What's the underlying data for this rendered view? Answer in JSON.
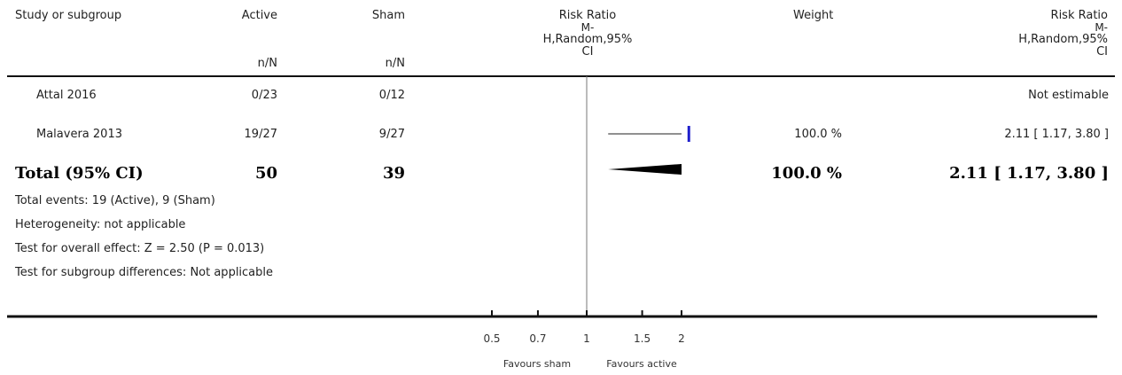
{
  "header": {
    "study": "Study or subgroup",
    "active": "Active",
    "sham": "Sham",
    "rr_lines": [
      "Risk Ratio",
      "M-",
      "H,Random,95%",
      "CI"
    ],
    "weight": "Weight",
    "rr2_lines": [
      "Risk Ratio",
      "M-",
      "H,Random,95%",
      "CI"
    ],
    "active_sub": "n/N",
    "sham_sub": "n/N"
  },
  "studies": [
    {
      "name": "Attal 2016",
      "active": "0/23",
      "sham": "0/12",
      "weight": "",
      "rr_text": "Not estimable"
    },
    {
      "name": "Malavera 2013",
      "active": "19/27",
      "sham": "9/27",
      "weight": "100.0 %",
      "rr_text": "2.11 [ 1.17, 3.80 ]"
    }
  ],
  "total": {
    "label": "Total (95% CI)",
    "active": "50",
    "sham": "39",
    "weight": "100.0 %",
    "rr_text": "2.11 [ 1.17, 3.80 ]"
  },
  "footnotes": [
    "Total events: 19 (Active), 9 (Sham)",
    "Heterogeneity: not applicable",
    "Test for overall effect: Z = 2.50 (P = 0.013)",
    "Test for subgroup differences: Not applicable"
  ],
  "axis": {
    "favours_left": "Favours sham",
    "favours_right": "Favours active"
  },
  "chart_data": {
    "type": "forest",
    "scale": "log",
    "x_range": [
      0.5,
      2
    ],
    "null_value": 1,
    "ticks": [
      {
        "value": 0.5,
        "label": "0.5"
      },
      {
        "value": 0.7,
        "label": "0.7"
      },
      {
        "value": 1,
        "label": "1"
      },
      {
        "value": 1.5,
        "label": "1.5"
      },
      {
        "value": 2,
        "label": "2"
      }
    ],
    "studies": [
      {
        "name": "Attal 2016",
        "estimable": false
      },
      {
        "name": "Malavera 2013",
        "estimable": true,
        "rr": 2.11,
        "lower": 1.17,
        "upper": 3.8,
        "weight": 100
      }
    ],
    "total": {
      "rr": 2.11,
      "lower": 1.17,
      "upper": 3.8
    },
    "colors": {
      "line": "#222222",
      "marker": "#1f1fcc",
      "diamond": "#000000"
    }
  }
}
